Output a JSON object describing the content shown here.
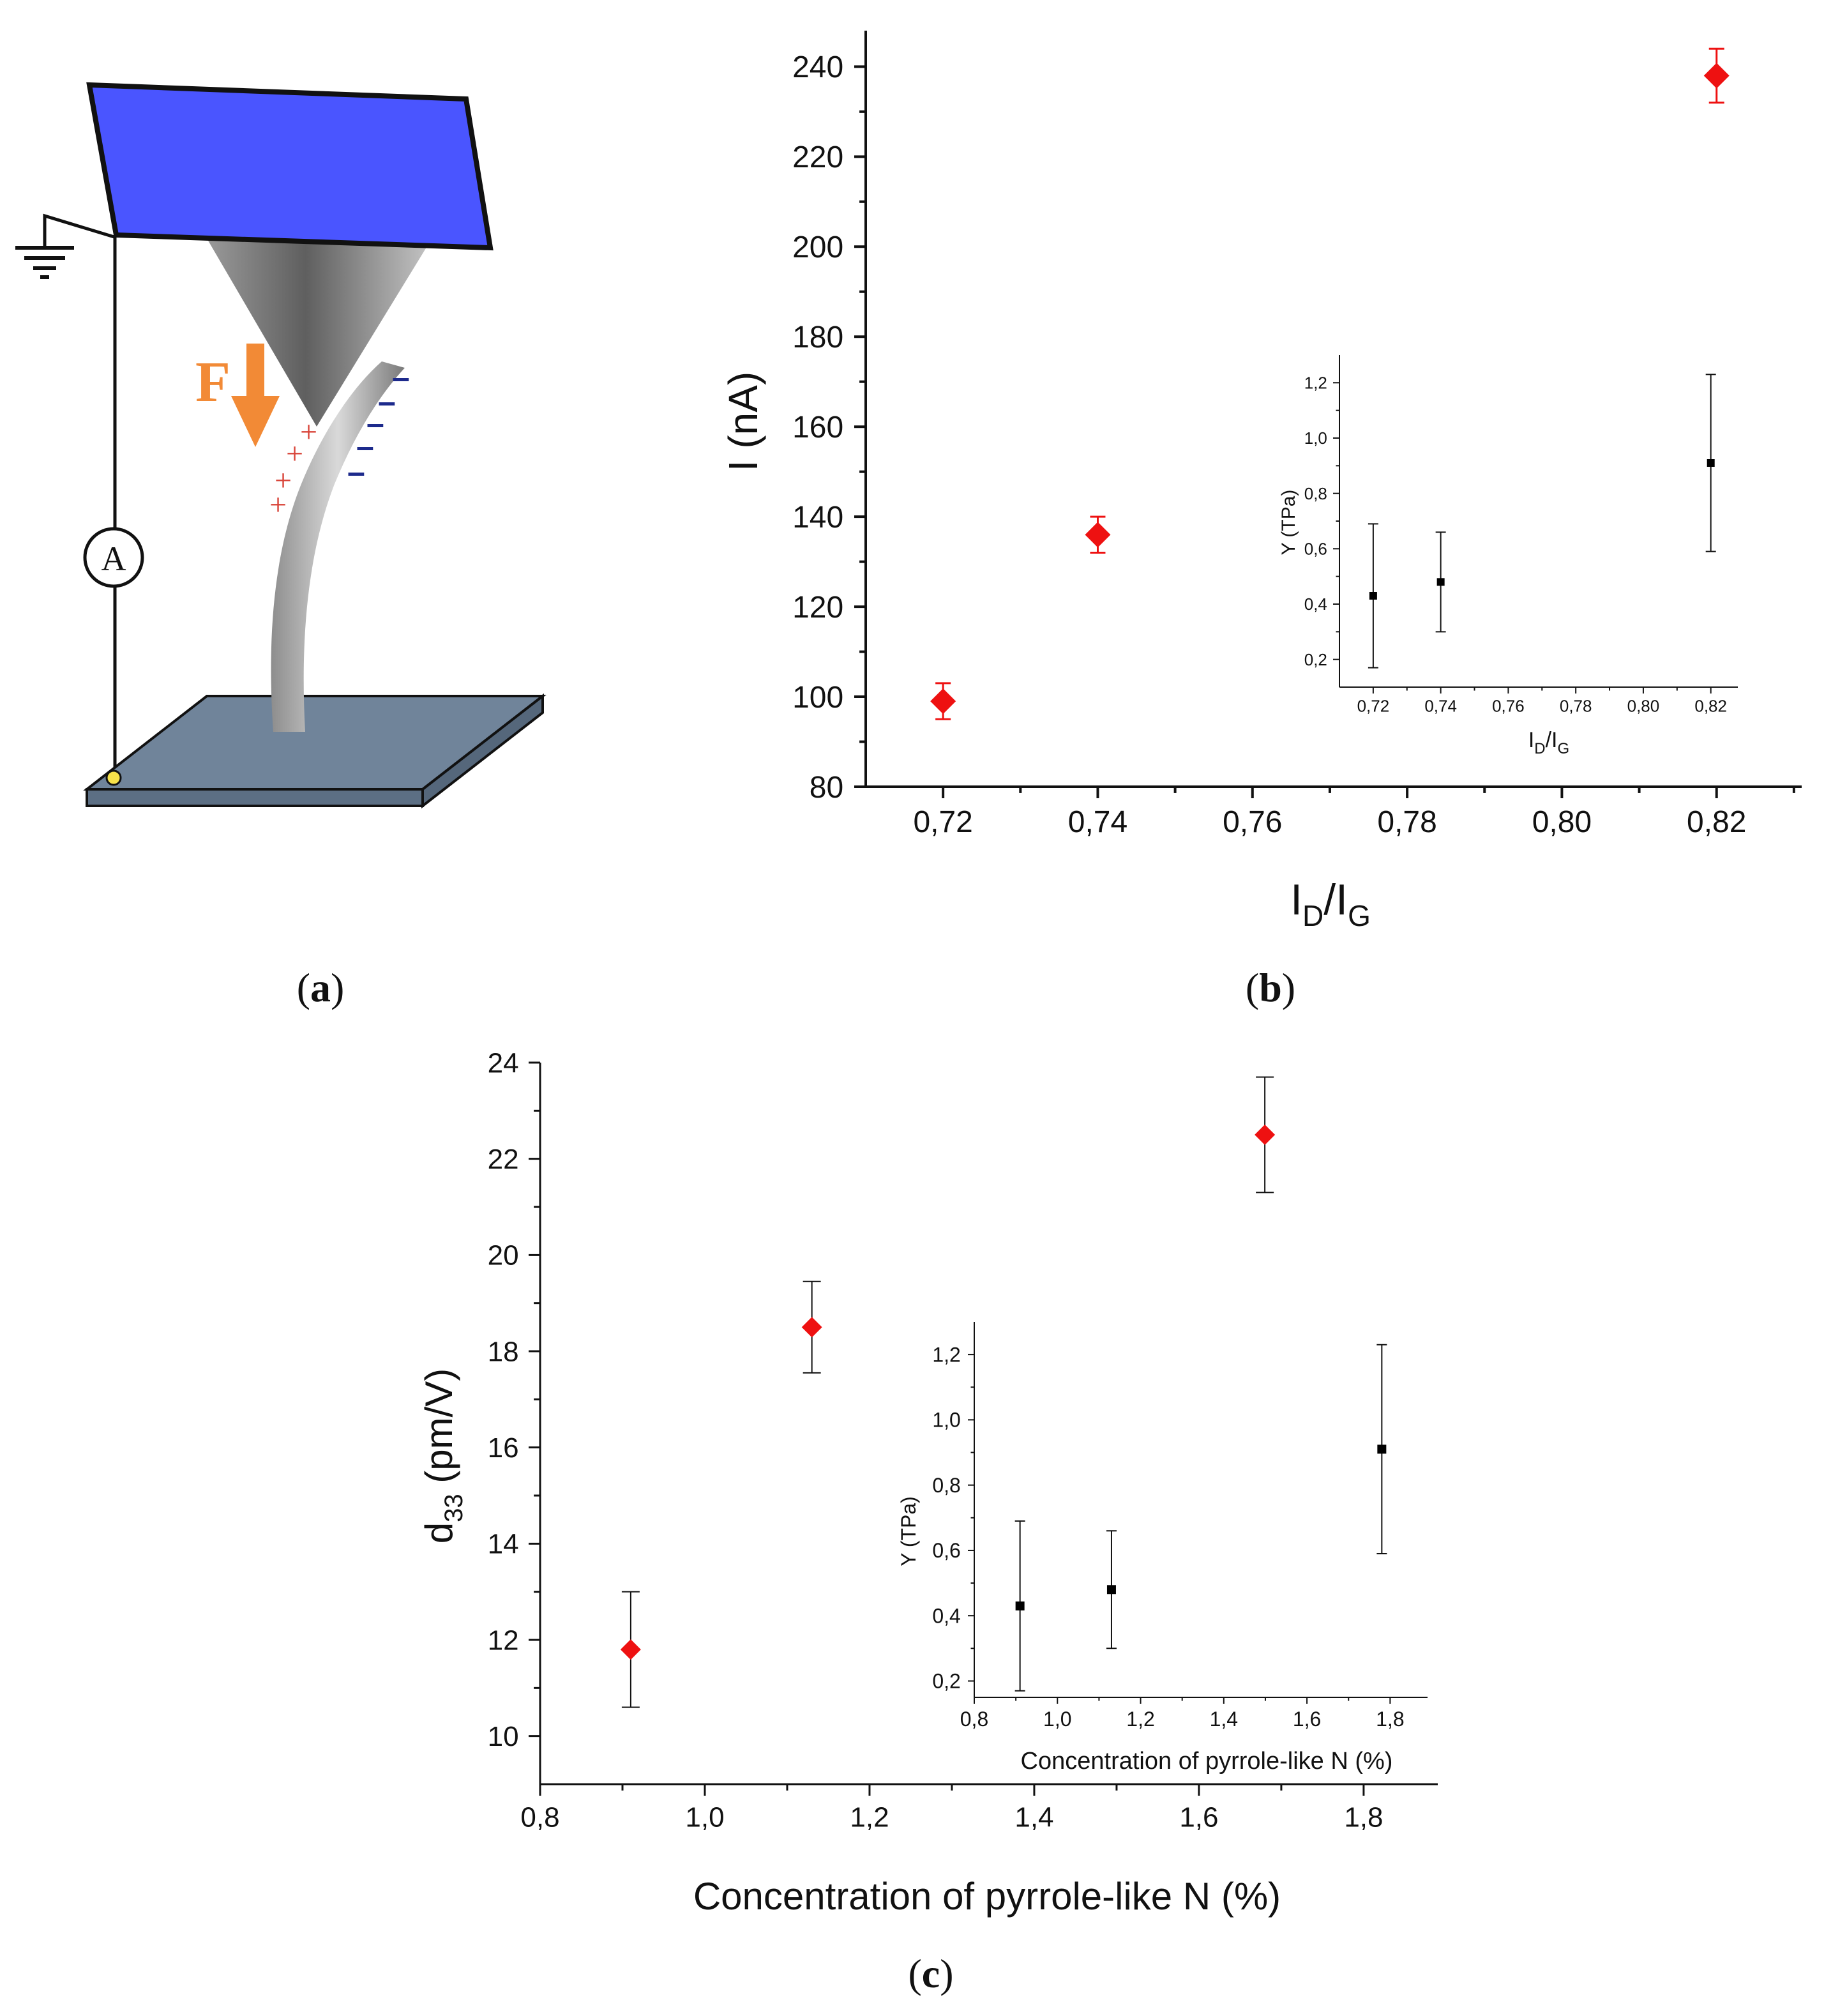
{
  "panel_labels": {
    "a": "a",
    "b": "b",
    "c": "c"
  },
  "schematic": {
    "force_label": "F",
    "ammeter_label": "A",
    "plus_sign": "+",
    "minus_sign": "–",
    "colors": {
      "cantilever": "#4a55ff",
      "arrow": "#f28a36",
      "substrate": "#70849a",
      "tip": "#8a8a8a",
      "plus": "#d9453a",
      "minus": "#1d2a8c"
    }
  },
  "chart_data": [
    {
      "id": "b-main",
      "type": "scatter",
      "ylabel_main": "I (nA)",
      "xlabel": {
        "main": "I",
        "sub": "D",
        "slash": "/I",
        "sub2": "G"
      },
      "xlim": [
        0.71,
        0.831
      ],
      "ylim": [
        80,
        248
      ],
      "x_ticks": [
        "0,72",
        "0,74",
        "0,76",
        "0,78",
        "0,80",
        "0,82"
      ],
      "x_tick_values": [
        0.72,
        0.74,
        0.76,
        0.78,
        0.8,
        0.82
      ],
      "y_ticks": [
        "80",
        "100",
        "120",
        "140",
        "160",
        "180",
        "200",
        "220",
        "240"
      ],
      "y_tick_values": [
        80,
        100,
        120,
        140,
        160,
        180,
        200,
        220,
        240
      ],
      "marker": "diamond",
      "color": "#ee1111",
      "points": [
        {
          "x": 0.72,
          "y": 99,
          "err": 4
        },
        {
          "x": 0.74,
          "y": 136,
          "err": 4
        },
        {
          "x": 0.82,
          "y": 238,
          "err": 6
        }
      ]
    },
    {
      "id": "b-inset",
      "type": "scatter",
      "ylabel": "Y (TPa)",
      "xlabel": {
        "main": "I",
        "sub": "D",
        "slash": "/I",
        "sub2": "G"
      },
      "xlim": [
        0.71,
        0.828
      ],
      "ylim": [
        0.1,
        1.3
      ],
      "x_ticks": [
        "0,72",
        "0,74",
        "0,76",
        "0,78",
        "0,80",
        "0,82"
      ],
      "x_tick_values": [
        0.72,
        0.74,
        0.76,
        0.78,
        0.8,
        0.82
      ],
      "y_ticks": [
        "0,2",
        "0,4",
        "0,6",
        "0,8",
        "1,0",
        "1,2"
      ],
      "y_tick_values": [
        0.2,
        0.4,
        0.6,
        0.8,
        1.0,
        1.2
      ],
      "marker": "square",
      "color": "#000000",
      "points": [
        {
          "x": 0.72,
          "y": 0.43,
          "lo": 0.17,
          "hi": 0.69
        },
        {
          "x": 0.74,
          "y": 0.48,
          "lo": 0.3,
          "hi": 0.66
        },
        {
          "x": 0.82,
          "y": 0.91,
          "lo": 0.59,
          "hi": 1.23
        }
      ]
    },
    {
      "id": "c-main",
      "type": "scatter",
      "ylabel": {
        "main": "d",
        "sub": "33",
        "rest": " (pm/V)"
      },
      "xlabel": "Concentration of pyrrole-like N (%)",
      "xlim": [
        0.8,
        1.89
      ],
      "ylim": [
        9,
        24
      ],
      "x_ticks": [
        "0,8",
        "1,0",
        "1,2",
        "1,4",
        "1,6",
        "1,8"
      ],
      "x_tick_values": [
        0.8,
        1.0,
        1.2,
        1.4,
        1.6,
        1.8
      ],
      "y_ticks": [
        "10",
        "12",
        "14",
        "16",
        "18",
        "20",
        "22",
        "24"
      ],
      "y_tick_values": [
        10,
        12,
        14,
        16,
        18,
        20,
        22,
        24
      ],
      "marker": "diamond",
      "color": "#ee1111",
      "points": [
        {
          "x": 0.91,
          "y": 11.8,
          "lo": 10.6,
          "hi": 13.0
        },
        {
          "x": 1.13,
          "y": 18.5,
          "lo": 17.55,
          "hi": 19.45
        },
        {
          "x": 1.68,
          "y": 22.5,
          "lo": 21.3,
          "hi": 23.7
        }
      ]
    },
    {
      "id": "c-inset",
      "type": "scatter",
      "ylabel": "Y (TPa)",
      "xlabel": "Concentration of pyrrole-like N (%)",
      "xlim": [
        0.8,
        1.89
      ],
      "ylim": [
        0.15,
        1.3
      ],
      "x_ticks": [
        "0,8",
        "1,0",
        "1,2",
        "1,4",
        "1,6",
        "1,8"
      ],
      "x_tick_values": [
        0.8,
        1.0,
        1.2,
        1.4,
        1.6,
        1.8
      ],
      "y_ticks": [
        "0,2",
        "0,4",
        "0,6",
        "0,8",
        "1,0",
        "1,2"
      ],
      "y_tick_values": [
        0.2,
        0.4,
        0.6,
        0.8,
        1.0,
        1.2
      ],
      "marker": "square",
      "color": "#000000",
      "points": [
        {
          "x": 0.91,
          "y": 0.43,
          "lo": 0.17,
          "hi": 0.69
        },
        {
          "x": 1.13,
          "y": 0.48,
          "lo": 0.3,
          "hi": 0.66
        },
        {
          "x": 1.78,
          "y": 0.91,
          "lo": 0.59,
          "hi": 1.23
        }
      ]
    }
  ]
}
